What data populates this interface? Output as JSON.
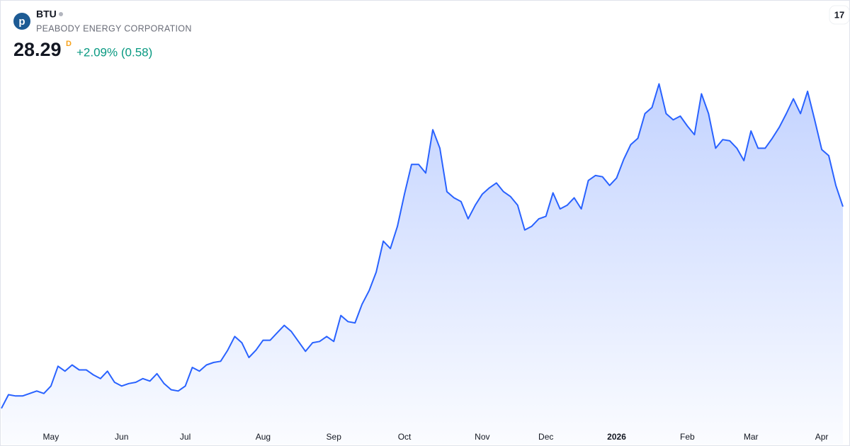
{
  "header": {
    "symbol": "BTU",
    "company": "PEABODY ENERGY CORPORATION",
    "price": "28.29",
    "interval": "D",
    "change": "+2.09% (0.58)"
  },
  "chart_data": {
    "type": "area",
    "categories": [
      null,
      null,
      null,
      null,
      null,
      null,
      null,
      "May",
      null,
      null,
      null,
      null,
      null,
      null,
      null,
      null,
      null,
      "Jun",
      null,
      null,
      null,
      null,
      null,
      null,
      null,
      null,
      "Jul",
      null,
      null,
      null,
      null,
      null,
      null,
      null,
      null,
      null,
      null,
      "Aug",
      null,
      null,
      null,
      null,
      null,
      null,
      null,
      null,
      null,
      "Sep",
      null,
      null,
      null,
      null,
      null,
      null,
      null,
      null,
      null,
      "Oct",
      null,
      null,
      null,
      null,
      null,
      null,
      null,
      null,
      null,
      null,
      "Nov",
      null,
      null,
      null,
      null,
      null,
      null,
      null,
      null,
      "Dec",
      null,
      null,
      null,
      null,
      null,
      null,
      null,
      null,
      null,
      "2026",
      null,
      null,
      null,
      null,
      null,
      null,
      null,
      null,
      null,
      "Feb",
      null,
      null,
      null,
      null,
      null,
      null,
      null,
      null,
      "Mar",
      null,
      null,
      null,
      null,
      null,
      null,
      null,
      null,
      null,
      "Apr",
      null,
      null,
      null
    ],
    "values": [
      12.0,
      13.1,
      13.0,
      13.0,
      13.2,
      13.4,
      13.2,
      13.8,
      15.4,
      15.0,
      15.5,
      15.1,
      15.1,
      14.7,
      14.4,
      15.0,
      14.1,
      13.8,
      14.0,
      14.1,
      14.4,
      14.2,
      14.8,
      14.0,
      13.5,
      13.4,
      13.8,
      15.3,
      15.0,
      15.5,
      15.7,
      15.8,
      16.7,
      17.8,
      17.3,
      16.1,
      16.7,
      17.5,
      17.5,
      18.1,
      18.7,
      18.2,
      17.4,
      16.6,
      17.3,
      17.4,
      17.8,
      17.4,
      19.5,
      19.0,
      18.9,
      20.4,
      21.5,
      23.0,
      25.5,
      24.9,
      26.7,
      29.3,
      31.7,
      31.7,
      31.0,
      34.5,
      33.0,
      29.5,
      29.0,
      28.7,
      27.3,
      28.4,
      29.3,
      29.8,
      30.2,
      29.5,
      29.1,
      28.4,
      26.4,
      26.7,
      27.3,
      27.5,
      29.4,
      28.1,
      28.4,
      29.0,
      28.1,
      30.4,
      30.8,
      30.7,
      30.0,
      30.6,
      32.1,
      33.3,
      33.8,
      35.8,
      36.3,
      38.2,
      35.8,
      35.3,
      35.6,
      34.8,
      34.1,
      37.4,
      35.8,
      33.0,
      33.7,
      33.6,
      33.0,
      32.0,
      34.4,
      33.0,
      33.0,
      33.8,
      34.7,
      35.8,
      37.0,
      35.8,
      37.6,
      35.3,
      32.9,
      32.4,
      30.0,
      28.29
    ],
    "color": "#2962ff",
    "ylim": [
      10.5,
      40
    ]
  }
}
